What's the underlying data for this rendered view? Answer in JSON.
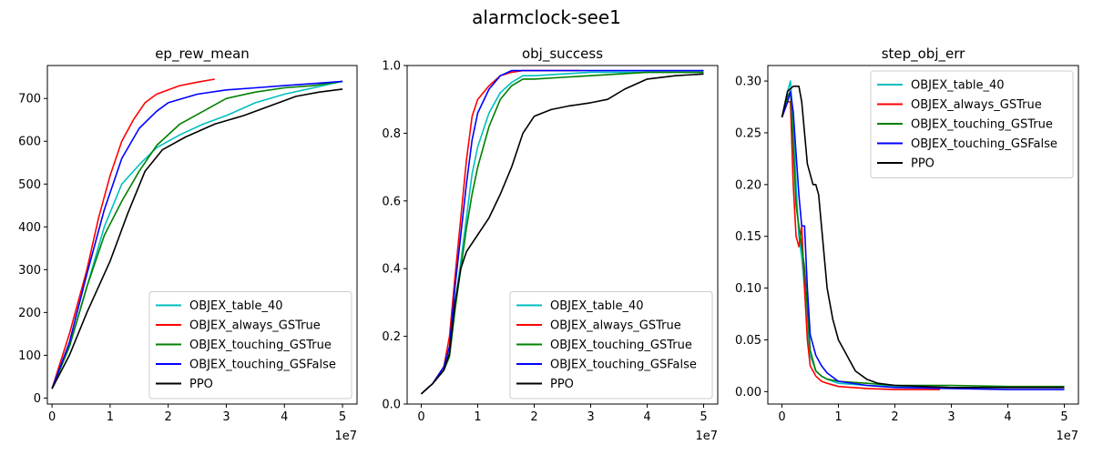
{
  "figure_title": "alarmclock-see1",
  "colors": {
    "OBJEX_table_40": "#00bfbf",
    "OBJEX_always_GSTrue": "#ff0000",
    "OBJEX_touching_GSTrue": "#008000",
    "OBJEX_touching_GSFalse": "#0000ff",
    "PPO": "#000000"
  },
  "chart_data": [
    {
      "type": "line",
      "title": "ep_rew_mean",
      "xlabel": "",
      "ylabel": "",
      "x_offset_label": "1e7",
      "x_scale": 10000000,
      "xlim": [
        -0.08,
        5.25
      ],
      "ylim": [
        -14,
        777
      ],
      "xticks": [
        0,
        1,
        2,
        3,
        4,
        5
      ],
      "yticks": [
        0,
        100,
        200,
        300,
        400,
        500,
        600,
        700
      ],
      "legend_position": "lower right",
      "series": [
        {
          "name": "OBJEX_table_40",
          "x": [
            0,
            0.3,
            0.6,
            0.9,
            1.2,
            1.5,
            1.8,
            2.2,
            2.6,
            3.0,
            3.5,
            4.0,
            4.5,
            5.0
          ],
          "y": [
            22,
            120,
            260,
            400,
            500,
            545,
            585,
            615,
            640,
            660,
            690,
            710,
            725,
            740
          ]
        },
        {
          "name": "OBJEX_always_GSTrue",
          "x": [
            0,
            0.3,
            0.6,
            0.8,
            1.0,
            1.2,
            1.4,
            1.6,
            1.8,
            2.0,
            2.2,
            2.5,
            2.8
          ],
          "y": [
            22,
            150,
            300,
            420,
            520,
            600,
            650,
            690,
            710,
            720,
            730,
            738,
            745
          ]
        },
        {
          "name": "OBJEX_touching_GSTrue",
          "x": [
            0,
            0.3,
            0.6,
            0.9,
            1.2,
            1.5,
            1.8,
            2.2,
            2.6,
            3.0,
            3.5,
            4.0,
            4.5,
            5.0
          ],
          "y": [
            22,
            120,
            260,
            380,
            460,
            530,
            590,
            640,
            670,
            700,
            715,
            725,
            730,
            740
          ]
        },
        {
          "name": "OBJEX_touching_GSFalse",
          "x": [
            0,
            0.3,
            0.6,
            0.9,
            1.2,
            1.5,
            1.8,
            2.0,
            2.5,
            3.0,
            3.5,
            4.0,
            4.5,
            5.0
          ],
          "y": [
            22,
            130,
            290,
            440,
            560,
            630,
            670,
            690,
            710,
            720,
            725,
            730,
            735,
            740
          ]
        },
        {
          "name": "PPO",
          "x": [
            0,
            0.3,
            0.6,
            1.0,
            1.3,
            1.6,
            1.9,
            2.3,
            2.8,
            3.3,
            3.8,
            4.2,
            4.6,
            5.0
          ],
          "y": [
            22,
            100,
            200,
            320,
            430,
            530,
            580,
            610,
            640,
            660,
            685,
            705,
            715,
            722
          ]
        }
      ]
    },
    {
      "type": "line",
      "title": "obj_success",
      "xlabel": "",
      "ylabel": "",
      "x_offset_label": "1e7",
      "x_scale": 10000000,
      "xlim": [
        -0.25,
        5.25
      ],
      "ylim": [
        0.0,
        1.0
      ],
      "xticks": [
        0,
        1,
        2,
        3,
        4,
        5
      ],
      "yticks": [
        0.0,
        0.2,
        0.4,
        0.6,
        0.8,
        1.0
      ],
      "legend_position": "lower right",
      "series": [
        {
          "name": "OBJEX_table_40",
          "x": [
            0,
            0.2,
            0.4,
            0.5,
            0.6,
            0.7,
            0.8,
            0.9,
            1.0,
            1.2,
            1.4,
            1.6,
            1.8,
            2.0,
            2.5,
            3.0,
            3.5,
            4.0,
            4.5,
            5.0
          ],
          "y": [
            0.03,
            0.06,
            0.1,
            0.15,
            0.3,
            0.42,
            0.55,
            0.68,
            0.76,
            0.86,
            0.92,
            0.95,
            0.97,
            0.97,
            0.975,
            0.98,
            0.98,
            0.98,
            0.98,
            0.98
          ]
        },
        {
          "name": "OBJEX_always_GSTrue",
          "x": [
            0,
            0.2,
            0.4,
            0.5,
            0.6,
            0.7,
            0.8,
            0.9,
            1.0,
            1.2,
            1.4,
            1.6,
            1.8,
            2.0,
            2.5,
            2.8
          ],
          "y": [
            0.03,
            0.06,
            0.11,
            0.2,
            0.38,
            0.55,
            0.72,
            0.85,
            0.9,
            0.94,
            0.97,
            0.98,
            0.985,
            0.985,
            0.985,
            0.985
          ]
        },
        {
          "name": "OBJEX_touching_GSTrue",
          "x": [
            0,
            0.2,
            0.4,
            0.5,
            0.6,
            0.7,
            0.8,
            0.9,
            1.0,
            1.2,
            1.4,
            1.6,
            1.8,
            2.0,
            2.5,
            3.0,
            3.5,
            4.0,
            4.5,
            5.0
          ],
          "y": [
            0.03,
            0.06,
            0.1,
            0.14,
            0.28,
            0.4,
            0.52,
            0.62,
            0.7,
            0.82,
            0.9,
            0.94,
            0.96,
            0.96,
            0.965,
            0.97,
            0.975,
            0.98,
            0.98,
            0.98
          ]
        },
        {
          "name": "OBJEX_touching_GSFalse",
          "x": [
            0,
            0.2,
            0.4,
            0.5,
            0.6,
            0.7,
            0.8,
            0.9,
            1.0,
            1.2,
            1.4,
            1.6,
            1.8,
            2.0,
            2.5,
            3.0,
            3.5,
            4.0,
            4.5,
            5.0
          ],
          "y": [
            0.03,
            0.06,
            0.11,
            0.17,
            0.35,
            0.5,
            0.65,
            0.78,
            0.86,
            0.93,
            0.97,
            0.985,
            0.985,
            0.985,
            0.985,
            0.985,
            0.985,
            0.985,
            0.985,
            0.985
          ]
        },
        {
          "name": "PPO",
          "x": [
            0,
            0.2,
            0.4,
            0.5,
            0.6,
            0.7,
            0.8,
            1.0,
            1.2,
            1.4,
            1.6,
            1.8,
            2.0,
            2.3,
            2.6,
            3.0,
            3.3,
            3.6,
            4.0,
            4.5,
            5.0
          ],
          "y": [
            0.03,
            0.06,
            0.1,
            0.15,
            0.3,
            0.4,
            0.45,
            0.5,
            0.55,
            0.62,
            0.7,
            0.8,
            0.85,
            0.87,
            0.88,
            0.89,
            0.9,
            0.93,
            0.96,
            0.97,
            0.975
          ]
        }
      ]
    },
    {
      "type": "line",
      "title": "step_obj_err",
      "xlabel": "",
      "ylabel": "",
      "x_offset_label": "1e7",
      "x_scale": 10000000,
      "xlim": [
        -0.25,
        5.25
      ],
      "ylim": [
        -0.012,
        0.315
      ],
      "xticks": [
        0,
        1,
        2,
        3,
        4,
        5
      ],
      "yticks": [
        0.0,
        0.05,
        0.1,
        0.15,
        0.2,
        0.25,
        0.3
      ],
      "legend_position": "upper right",
      "series": [
        {
          "name": "OBJEX_table_40",
          "x": [
            0,
            0.1,
            0.15,
            0.2,
            0.25,
            0.3,
            0.35,
            0.4,
            0.45,
            0.5,
            0.6,
            0.7,
            0.8,
            1.0,
            1.5,
            2.0,
            3.0,
            4.0,
            5.0
          ],
          "y": [
            0.265,
            0.29,
            0.3,
            0.26,
            0.2,
            0.15,
            0.13,
            0.1,
            0.06,
            0.035,
            0.02,
            0.015,
            0.012,
            0.008,
            0.006,
            0.005,
            0.004,
            0.004,
            0.004
          ]
        },
        {
          "name": "OBJEX_always_GSTrue",
          "x": [
            0,
            0.1,
            0.15,
            0.2,
            0.25,
            0.3,
            0.35,
            0.4,
            0.45,
            0.5,
            0.6,
            0.7,
            0.8,
            1.0,
            1.5,
            2.0,
            2.8
          ],
          "y": [
            0.265,
            0.28,
            0.28,
            0.2,
            0.15,
            0.14,
            0.16,
            0.1,
            0.05,
            0.025,
            0.015,
            0.01,
            0.008,
            0.005,
            0.003,
            0.002,
            0.002
          ]
        },
        {
          "name": "OBJEX_touching_GSTrue",
          "x": [
            0,
            0.1,
            0.15,
            0.2,
            0.25,
            0.3,
            0.35,
            0.4,
            0.45,
            0.5,
            0.6,
            0.7,
            0.8,
            1.0,
            1.5,
            2.0,
            3.0,
            4.0,
            5.0
          ],
          "y": [
            0.265,
            0.285,
            0.29,
            0.24,
            0.18,
            0.16,
            0.14,
            0.12,
            0.08,
            0.04,
            0.02,
            0.015,
            0.012,
            0.01,
            0.008,
            0.006,
            0.006,
            0.005,
            0.005
          ]
        },
        {
          "name": "OBJEX_touching_GSFalse",
          "x": [
            0,
            0.1,
            0.15,
            0.2,
            0.25,
            0.3,
            0.35,
            0.4,
            0.45,
            0.5,
            0.6,
            0.7,
            0.8,
            1.0,
            1.5,
            2.0,
            3.0,
            4.0,
            5.0
          ],
          "y": [
            0.265,
            0.28,
            0.29,
            0.27,
            0.23,
            0.19,
            0.16,
            0.16,
            0.1,
            0.055,
            0.035,
            0.025,
            0.018,
            0.01,
            0.006,
            0.004,
            0.003,
            0.002,
            0.002
          ]
        },
        {
          "name": "PPO",
          "x": [
            0,
            0.1,
            0.2,
            0.3,
            0.35,
            0.4,
            0.45,
            0.5,
            0.55,
            0.6,
            0.65,
            0.7,
            0.75,
            0.8,
            0.9,
            1.0,
            1.1,
            1.2,
            1.3,
            1.5,
            1.7,
            2.0,
            2.5,
            3.0,
            4.0,
            5.0
          ],
          "y": [
            0.265,
            0.29,
            0.295,
            0.295,
            0.28,
            0.25,
            0.22,
            0.21,
            0.2,
            0.2,
            0.19,
            0.16,
            0.13,
            0.1,
            0.07,
            0.05,
            0.04,
            0.03,
            0.02,
            0.012,
            0.008,
            0.006,
            0.005,
            0.004,
            0.004,
            0.004
          ]
        }
      ]
    }
  ]
}
